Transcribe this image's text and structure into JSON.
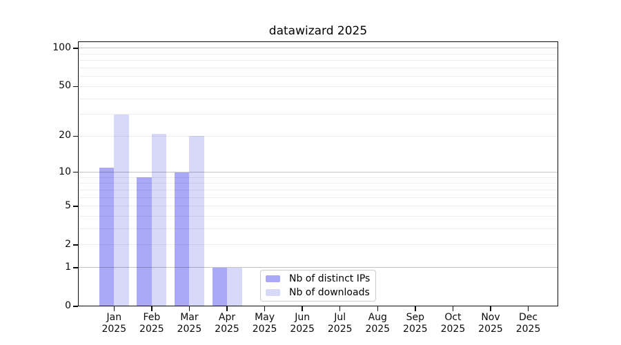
{
  "chart_data": {
    "type": "bar",
    "title": "datawizard 2025",
    "yscale": "log1p",
    "ylim": [
      0,
      114
    ],
    "grid": true,
    "legend_position": "lower center inside plot",
    "categories": [
      {
        "month": "Jan",
        "year": "2025"
      },
      {
        "month": "Feb",
        "year": "2025"
      },
      {
        "month": "Mar",
        "year": "2025"
      },
      {
        "month": "Apr",
        "year": "2025"
      },
      {
        "month": "May",
        "year": "2025"
      },
      {
        "month": "Jun",
        "year": "2025"
      },
      {
        "month": "Jul",
        "year": "2025"
      },
      {
        "month": "Aug",
        "year": "2025"
      },
      {
        "month": "Sep",
        "year": "2025"
      },
      {
        "month": "Oct",
        "year": "2025"
      },
      {
        "month": "Nov",
        "year": "2025"
      },
      {
        "month": "Dec",
        "year": "2025"
      }
    ],
    "series": [
      {
        "name": "Nb of distinct IPs",
        "color": "#a9a9f8",
        "values": [
          11,
          9,
          10,
          1,
          0,
          0,
          0,
          0,
          0,
          0,
          0,
          0
        ]
      },
      {
        "name": "Nb of downloads",
        "color": "#d8d8f8",
        "values": [
          30,
          21,
          20,
          1,
          0,
          0,
          0,
          0,
          0,
          0,
          0,
          0
        ]
      }
    ],
    "y_ticks": [
      {
        "value": 0,
        "label": "0"
      },
      {
        "value": 1,
        "label": "1"
      },
      {
        "value": 2,
        "label": "2"
      },
      {
        "value": 5,
        "label": "5"
      },
      {
        "value": 10,
        "label": "10"
      },
      {
        "value": 20,
        "label": "20"
      },
      {
        "value": 50,
        "label": "50"
      },
      {
        "value": 100,
        "label": "100"
      }
    ]
  },
  "colors": {
    "grid_major": "rgba(0,0,0,0.24)",
    "grid_minor": "rgba(0,0,0,0.07)"
  }
}
